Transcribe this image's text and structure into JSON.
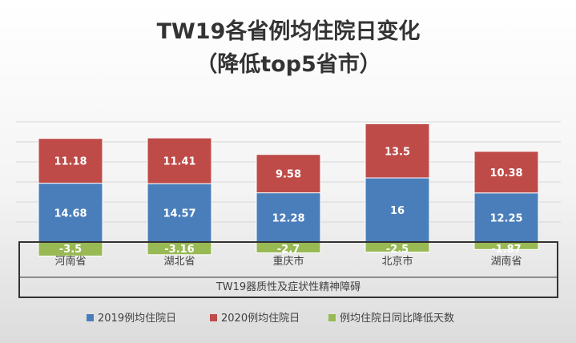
{
  "chart_data": {
    "type": "bar",
    "stacked": true,
    "title": "TW19各省例均住院日变化",
    "subtitle": "（降低top5省市）",
    "categories": [
      "河南省",
      "湖北省",
      "重庆市",
      "北京市",
      "湖南省"
    ],
    "group_label": "TW19器质性及症状性精神障碍",
    "series": [
      {
        "name": "2019例均住院日",
        "values": [
          14.68,
          14.57,
          12.28,
          16,
          12.25
        ],
        "labels": [
          "14.68",
          "14.57",
          "12.28",
          "16",
          "12.25"
        ],
        "color": "#4a7ebb"
      },
      {
        "name": "2020例均住院日",
        "values": [
          11.18,
          11.41,
          9.58,
          13.5,
          10.38
        ],
        "labels": [
          "11.18",
          "11.41",
          "9.58",
          "13.5",
          "10.38"
        ],
        "color": "#be4b48"
      },
      {
        "name": "例均住院日同比降低天数",
        "values": [
          -3.5,
          -3.16,
          -2.7,
          -2.5,
          -1.87
        ],
        "labels": [
          "-3.5",
          "-3.16",
          "-2.7",
          "-2.5",
          "-1.87"
        ],
        "color": "#98b954"
      }
    ],
    "legend_position": "bottom",
    "grid": true
  }
}
